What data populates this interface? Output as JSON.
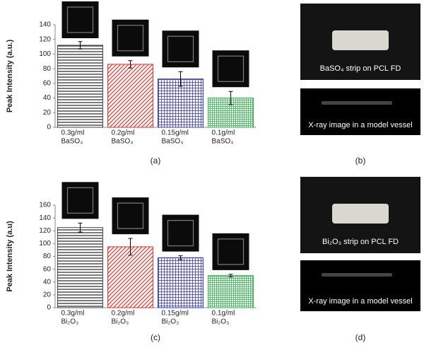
{
  "chart_data": [
    {
      "type": "bar",
      "ylabel": "Peak Intensity (a.u.)",
      "categories": [
        [
          "0.3g/ml",
          "BaSO₄"
        ],
        [
          "0.2g/ml",
          "BaSO₄"
        ],
        [
          "0.15g/ml",
          "BaSO₄"
        ],
        [
          "0.1g/ml",
          "BaSO₄"
        ]
      ],
      "values": [
        112,
        86,
        66,
        40
      ],
      "errors": [
        5,
        5,
        10,
        9
      ],
      "colors": [
        "#444444",
        "#e0302a",
        "#3535d8",
        "#2fb84a"
      ],
      "patterns": [
        "horizontal",
        "diagonal",
        "grid",
        "fine-grid"
      ],
      "ylim": [
        0,
        140
      ],
      "yticks": [
        0,
        20,
        40,
        60,
        80,
        100,
        120,
        140
      ],
      "panel_label": "(a)"
    },
    {
      "type": "bar",
      "ylabel": "Peak Intensity (a.u)",
      "categories": [
        [
          "0.3g/ml",
          "Bi₂O₃"
        ],
        [
          "0.2g/ml",
          "Bi₂O₃"
        ],
        [
          "0.15g/ml",
          "Bi₂O₃"
        ],
        [
          "0.1g/ml",
          "Bi₂O₃"
        ]
      ],
      "values": [
        125,
        95,
        78,
        50
      ],
      "errors": [
        7,
        13,
        3,
        2
      ],
      "colors": [
        "#444444",
        "#e0302a",
        "#3535d8",
        "#2fb84a"
      ],
      "patterns": [
        "horizontal",
        "diagonal",
        "grid",
        "fine-grid"
      ],
      "ylim": [
        0,
        160
      ],
      "yticks": [
        0,
        20,
        40,
        60,
        80,
        100,
        120,
        140,
        160
      ],
      "panel_label": "(c)"
    }
  ],
  "photos": [
    {
      "captions": [
        "BaSO₄ strip on PCL FD",
        "X-ray image in a model vessel"
      ],
      "label": "(b)"
    },
    {
      "captions": [
        "Bi₂O₃ strip on PCL FD",
        "X-ray image in a model vessel"
      ],
      "label": "(d)"
    }
  ]
}
